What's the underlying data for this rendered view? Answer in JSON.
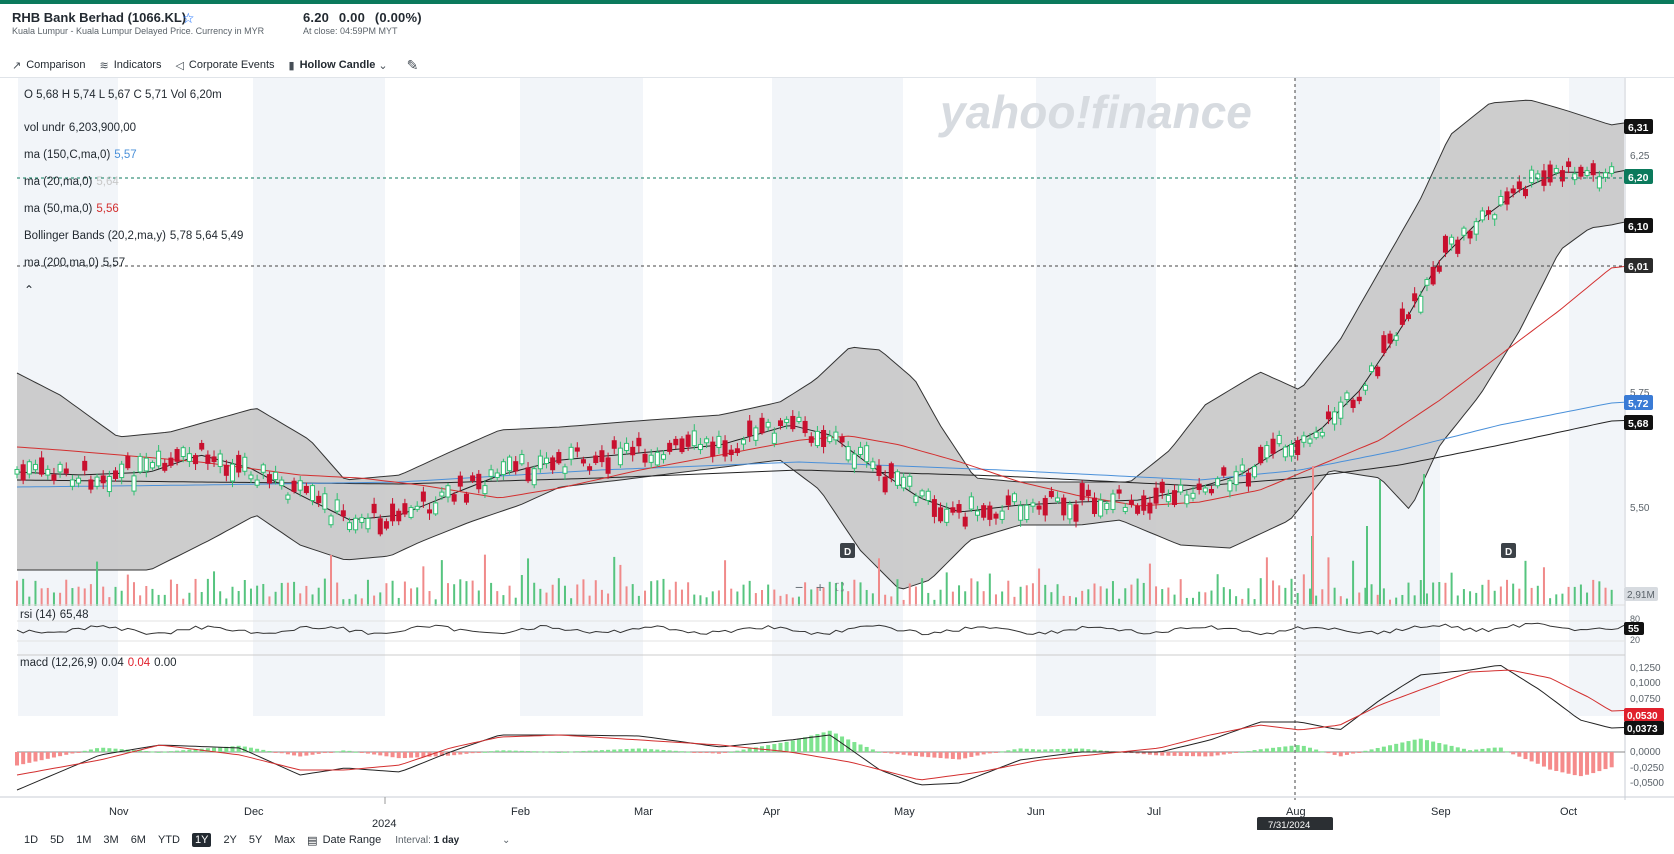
{
  "header": {
    "title": "RHB Bank Berhad (1066.KL)",
    "subtitle": "Kuala Lumpur - Kuala Lumpur Delayed Price. Currency in MYR",
    "price": "6.20",
    "change": "0.00",
    "change_pct": "(0.00%)",
    "close_time": "At close: 04:59PM MYT"
  },
  "toolbar": {
    "comparison": "Comparison",
    "indicators": "Indicators",
    "corporate_events": "Corporate Events",
    "chart_type": "Hollow Candle"
  },
  "legend": {
    "ohlc": "O 5,68   H 5,74   L 5,67   C 5,71   Vol 6,20m",
    "vol_label": "vol undr",
    "vol_value": "6,203,900,00",
    "ma150_label": "ma (150,C,ma,0)",
    "ma150_value": "5,57",
    "ma20_label": "ma (20,ma,0)",
    "ma20_value": "5,64",
    "ma50_label": "ma (50,ma,0)",
    "ma50_value": "5,56",
    "bb_label": "Bollinger Bands (20,2,ma,y)",
    "bb_value": "5,78 5,64 5,49",
    "ma200_label": "ma (200,ma,0)",
    "ma200_value": "5,57",
    "rsi_label": "rsi (14)",
    "rsi_value": "65,48",
    "macd_label": "macd (12,26,9)",
    "macd_v1": "0.04",
    "macd_v2": "0.04",
    "macd_v3": "0.00"
  },
  "watermark": "yahoo!finance",
  "crosshair_date": "7/31/2024",
  "price_axis": [
    "6,25",
    "5,75",
    "5,50"
  ],
  "price_tags": [
    {
      "label": "6,31",
      "value": 6.31,
      "color": "#111111"
    },
    {
      "label": "6,20",
      "value": 6.2,
      "color": "#0b7a5c"
    },
    {
      "label": "6,10",
      "value": 6.1,
      "color": "#111111"
    },
    {
      "label": "6,01",
      "value": 6.01,
      "color": "#2b2b2b"
    },
    {
      "label": "5,72",
      "value": 5.72,
      "color": "#3a7bd5"
    },
    {
      "label": "5,68",
      "value": 5.68,
      "color": "#111111"
    }
  ],
  "volume_tag": "2,91M",
  "rsi_axis": [
    "80",
    "20"
  ],
  "rsi_tag": "55",
  "macd_axis": [
    "0,1250",
    "0,1000",
    "0,0750",
    "0,0500",
    "0,0000",
    "-0,0250",
    "-0,0500"
  ],
  "macd_tags": [
    {
      "label": "0,0530",
      "color": "#e0202c"
    },
    {
      "label": "0,0373",
      "color": "#111111"
    }
  ],
  "event_markers": [
    "D",
    "D"
  ],
  "months": [
    "Nov",
    "Dec",
    "2024",
    "Feb",
    "Mar",
    "Apr",
    "May",
    "Jun",
    "Jul",
    "Aug",
    "Sep",
    "Oct"
  ],
  "ranges": [
    "1D",
    "5D",
    "1M",
    "3M",
    "6M",
    "YTD",
    "1Y",
    "2Y",
    "5Y",
    "Max"
  ],
  "active_range": "1Y",
  "date_range_label": "Date Range",
  "interval_label": "Interval:",
  "interval_value": "1 day",
  "colors": {
    "up": "#2fbf71",
    "down": "#c8102e",
    "ma20": "#222222",
    "ma50": "#d32f2f",
    "ma150": "#4a90d9",
    "ma200": "#222222",
    "bands_fill": "#c8c8c8"
  },
  "chart_data": {
    "type": "candlestick",
    "title": "RHB Bank Berhad (1066.KL)",
    "x": [
      "Oct 2023",
      "Nov 2023",
      "Dec 2023",
      "Jan 2024",
      "Feb 2024",
      "Mar 2024",
      "Apr 2024",
      "May 2024",
      "Jun 2024",
      "Jul 2024",
      "Aug 2024",
      "Sep 2024",
      "Oct 2024"
    ],
    "close_approx": [
      5.58,
      5.63,
      5.47,
      5.49,
      5.64,
      5.62,
      5.73,
      5.47,
      5.5,
      5.54,
      5.72,
      6.2,
      6.2
    ],
    "ma50_approx": [
      5.63,
      5.6,
      5.57,
      5.55,
      5.58,
      5.62,
      5.66,
      5.6,
      5.53,
      5.52,
      5.62,
      5.83,
      6.01
    ],
    "ma150_approx": [
      5.57,
      5.57,
      5.57,
      5.57,
      5.58,
      5.59,
      5.61,
      5.6,
      5.58,
      5.57,
      5.59,
      5.66,
      5.72
    ],
    "ma200_approx": [
      5.56,
      5.56,
      5.55,
      5.55,
      5.56,
      5.58,
      5.6,
      5.6,
      5.58,
      5.57,
      5.57,
      5.62,
      5.68
    ],
    "ylim": [
      5.4,
      6.35
    ],
    "macd_range": [
      -0.05,
      0.13
    ],
    "rsi_range": [
      20,
      80
    ],
    "last": {
      "close": 6.2,
      "ma50": 6.01,
      "ma150": 5.72,
      "ma200": 5.68,
      "bb_upper": 6.31,
      "bb_lower": 6.1
    }
  }
}
